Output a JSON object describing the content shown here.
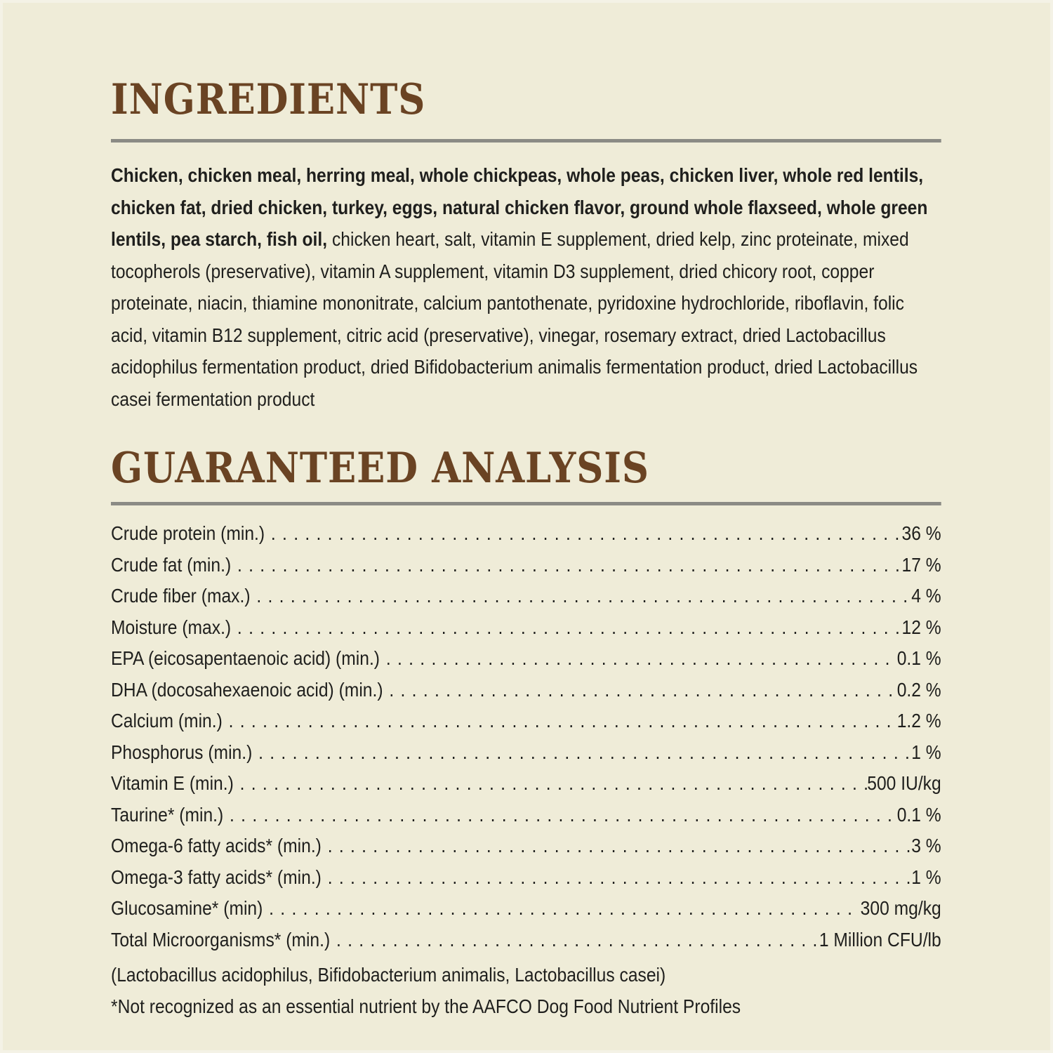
{
  "page": {
    "background_color": "#efecd8",
    "heading_color": "#6a4323",
    "rule_color": "#8b8b85",
    "text_color": "#1f1f1d"
  },
  "ingredients": {
    "title": "INGREDIENTS",
    "bold_text": "Chicken, chicken meal, herring meal, whole chickpeas, whole peas, chicken liver, whole red lentils, chicken fat, dried chicken, turkey, eggs, natural chicken flavor, ground whole flaxseed, whole green lentils, pea starch, fish oil,",
    "regular_text": " chicken heart, salt, vitamin E supplement, dried kelp, zinc proteinate, mixed tocopherols (preservative), vitamin A supplement, vitamin D3 supplement, dried chicory root, copper proteinate, niacin, thiamine mononitrate, calcium pantothenate, pyridoxine hydrochloride, riboflavin, folic acid, vitamin B12 supplement, citric acid (preservative), vinegar, rosemary extract, dried Lactobacillus acidophilus fermentation product, dried Bifidobacterium animalis fermentation product, dried Lactobacillus casei fermentation product"
  },
  "analysis": {
    "title": "GUARANTEED ANALYSIS",
    "rows": [
      {
        "label": "Crude protein (min.)",
        "value": "36 %"
      },
      {
        "label": "Crude fat (min.)",
        "value": "17 %"
      },
      {
        "label": "Crude fiber (max.)",
        "value": "4 %"
      },
      {
        "label": "Moisture (max.)",
        "value": "12 %"
      },
      {
        "label": "EPA (eicosapentaenoic acid) (min.)",
        "value": "0.1 %"
      },
      {
        "label": "DHA (docosahexaenoic acid) (min.)",
        "value": "0.2 %"
      },
      {
        "label": "Calcium (min.)",
        "value": "1.2 %"
      },
      {
        "label": "Phosphorus (min.)",
        "value": "1 %"
      },
      {
        "label": "Vitamin E (min.)",
        "value": "500 IU/kg"
      },
      {
        "label": "Taurine* (min.)",
        "value": "0.1 %"
      },
      {
        "label": "Omega-6 fatty acids* (min.)",
        "value": "3 %"
      },
      {
        "label": "Omega-3 fatty acids* (min.)",
        "value": "1 %"
      },
      {
        "label": "Glucosamine* (min)",
        "value": "300 mg/kg"
      },
      {
        "label": "Total Microorganisms* (min.)",
        "value": "1 Million CFU/lb"
      }
    ],
    "notes": [
      "(Lactobacillus acidophilus, Bifidobacterium animalis, Lactobacillus casei)",
      "*Not recognized as an essential nutrient by the AAFCO Dog Food Nutrient Profiles"
    ]
  }
}
